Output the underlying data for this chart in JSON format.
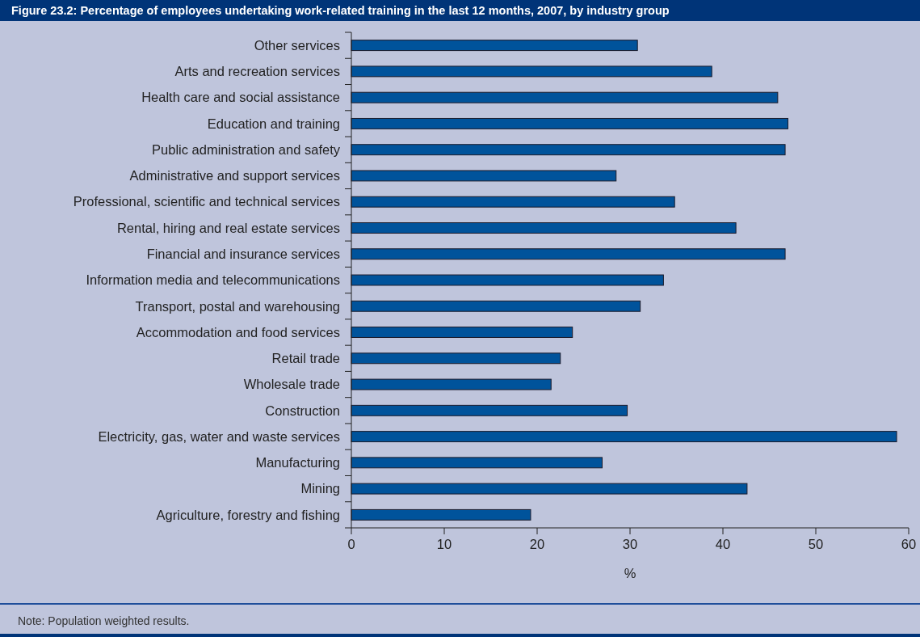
{
  "chart_data": {
    "type": "bar",
    "orientation": "horizontal",
    "title": "Figure 23.2: Percentage of employees undertaking work-related training in the last 12 months, 2007, by industry group",
    "categories": [
      "Other services",
      "Arts and recreation services",
      "Health care and social assistance",
      "Education and training",
      "Public administration and safety",
      "Administrative and support services",
      "Professional, scientific and technical services",
      "Rental, hiring and real estate services",
      "Financial and insurance services",
      "Information media and telecommunications",
      "Transport, postal and warehousing",
      "Accommodation and food services",
      "Retail trade",
      "Wholesale trade",
      "Construction",
      "Electricity, gas, water and waste services",
      "Manufacturing",
      "Mining",
      "Agriculture, forestry and fishing"
    ],
    "values": [
      30.8,
      38.8,
      45.9,
      47.0,
      46.7,
      28.5,
      34.8,
      41.4,
      46.7,
      33.6,
      31.1,
      23.8,
      22.5,
      21.5,
      29.7,
      58.7,
      27.0,
      42.6,
      19.3
    ],
    "color": "#00539b",
    "xlim": [
      0,
      60
    ],
    "xticks": [
      0,
      10,
      20,
      30,
      40,
      50,
      60
    ],
    "xlabel": "%",
    "annotations": [
      "Note: Population weighted results."
    ]
  }
}
